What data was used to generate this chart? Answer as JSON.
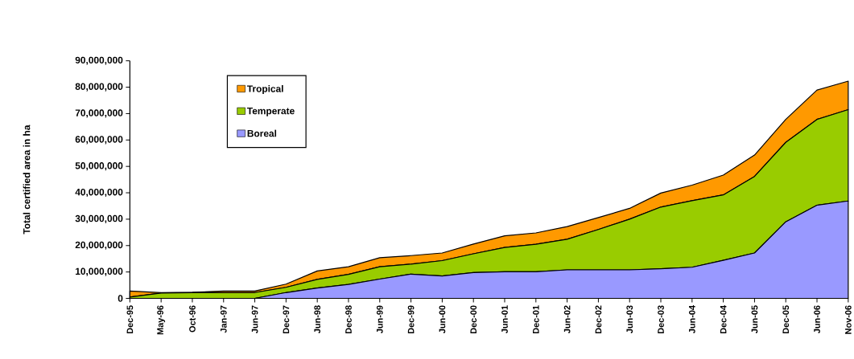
{
  "chart_data": {
    "type": "area",
    "stacked": true,
    "ylabel": "Total certified area in ha",
    "categories": [
      "Dec-95",
      "May-96",
      "Oct-96",
      "Jan-97",
      "Jun-97",
      "Dec-97",
      "Jun-98",
      "Dec-98",
      "Jun-99",
      "Dec-99",
      "Jun-00",
      "Dec-00",
      "Jun-01",
      "Dec-01",
      "Jun-02",
      "Dec-02",
      "Jun-03",
      "Dec-03",
      "Jun-04",
      "Dec-04",
      "Jun-05",
      "Dec-05",
      "Jun-06",
      "Nov-06"
    ],
    "series": [
      {
        "name": "Boreal",
        "color": "#9999ff",
        "values": [
          0,
          0,
          0,
          0,
          0,
          2200000,
          3900000,
          5300000,
          7300000,
          9200000,
          8500000,
          9800000,
          10100000,
          10100000,
          10800000,
          10800000,
          10800000,
          11200000,
          11800000,
          14400000,
          17200000,
          29000000,
          35300000,
          36900000
        ]
      },
      {
        "name": "Temperate",
        "color": "#99cc00",
        "values": [
          500000,
          2000000,
          2200000,
          2200000,
          2200000,
          2000000,
          3300000,
          3800000,
          4700000,
          3800000,
          5800000,
          7100000,
          9200000,
          10400000,
          11600000,
          15300000,
          19200000,
          23400000,
          25200000,
          24800000,
          29000000,
          30100000,
          32500000,
          34600000
        ]
      },
      {
        "name": "Tropical",
        "color": "#ff9900",
        "values": [
          2300000,
          200000,
          100000,
          600000,
          600000,
          1200000,
          3200000,
          2900000,
          3400000,
          3200000,
          2900000,
          3700000,
          4400000,
          4300000,
          4800000,
          4500000,
          4100000,
          5300000,
          5900000,
          7500000,
          8100000,
          8700000,
          11100000,
          10800000
        ]
      }
    ],
    "ylim": [
      0,
      90000000
    ],
    "yticks": [
      {
        "value": 0,
        "label": "0"
      },
      {
        "value": 10000000,
        "label": "10,000,000"
      },
      {
        "value": 20000000,
        "label": "20,000,000"
      },
      {
        "value": 30000000,
        "label": "30,000,000"
      },
      {
        "value": 40000000,
        "label": "40,000,000"
      },
      {
        "value": 50000000,
        "label": "50,000,000"
      },
      {
        "value": 60000000,
        "label": "60,000,000"
      },
      {
        "value": 70000000,
        "label": "70,000,000"
      },
      {
        "value": 80000000,
        "label": "80,000,000"
      },
      {
        "value": 90000000,
        "label": "90,000,000"
      }
    ],
    "legend": "top left",
    "grid": false
  }
}
